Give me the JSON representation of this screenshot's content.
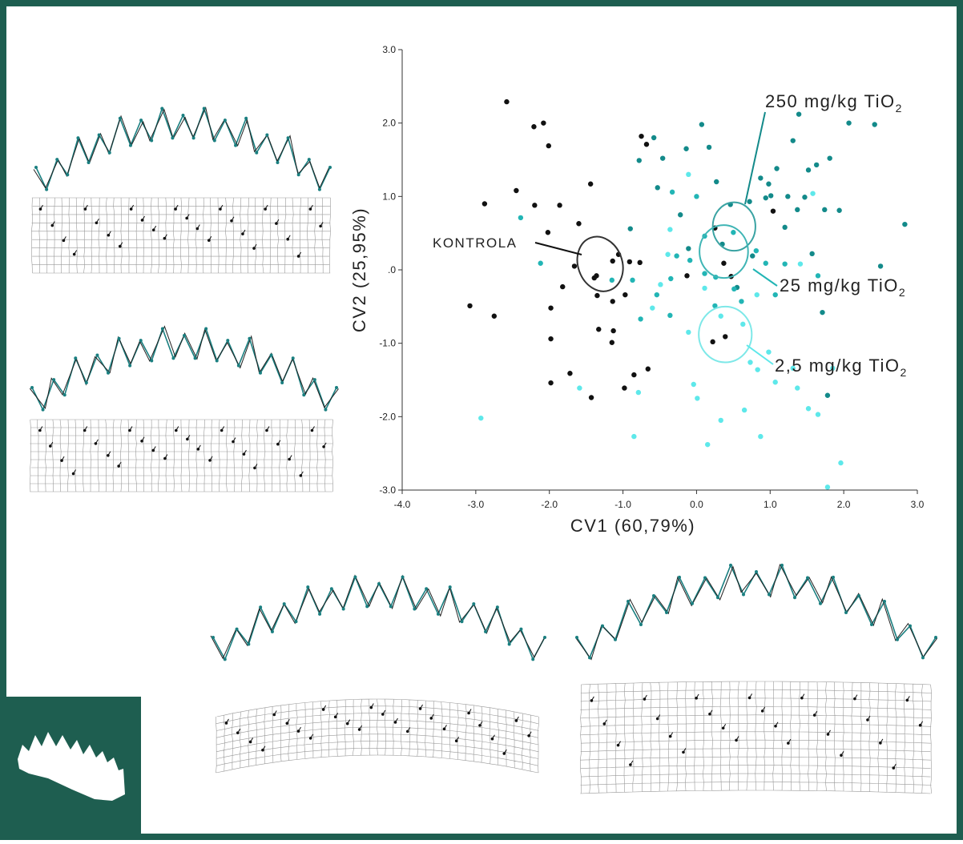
{
  "chart_data": {
    "type": "scatter",
    "x_label": "CV1 (60,79%)",
    "y_label": "CV2 (25,95%)",
    "xlim": [
      -4,
      3
    ],
    "ylim": [
      -3,
      3
    ],
    "xticks": [
      {
        "value": -4,
        "label": "-4.0"
      },
      {
        "value": -3,
        "label": "-3.0"
      },
      {
        "value": -2,
        "label": "-2.0"
      },
      {
        "value": -1,
        "label": "-1.0"
      },
      {
        "value": 0,
        "label": "0.0"
      },
      {
        "value": 1,
        "label": "1.0"
      },
      {
        "value": 2,
        "label": "2.0"
      },
      {
        "value": 3,
        "label": "3.0"
      }
    ],
    "yticks": [
      {
        "value": 3,
        "label": "3.0"
      },
      {
        "value": 2,
        "label": "2.0"
      },
      {
        "value": 1,
        "label": "1.0"
      },
      {
        "value": 0,
        "label": ".0"
      },
      {
        "value": -1,
        "label": "-1.0"
      },
      {
        "value": -2,
        "label": "-2.0"
      },
      {
        "value": -3,
        "label": "-3.0"
      }
    ],
    "series": [
      {
        "color": "#111111",
        "x": [
          -2.58,
          -2.21,
          -2.08,
          -2.01,
          -0.75,
          -0.68,
          -2.88,
          -2.45,
          -2.2,
          -1.86,
          -1.44,
          -1.6,
          -2.02,
          -1.66,
          -1.36,
          -1.39,
          -1.14,
          -1.06,
          -0.91,
          -0.77,
          -1.82,
          -1.35,
          -1.14,
          -0.97,
          -3.08,
          -2.75,
          -1.98,
          -1.33,
          -1.13,
          -1.15,
          -1.98,
          -1.72,
          -1.98,
          -1.43,
          -0.98,
          -0.85,
          -0.66,
          -0.13,
          0.25,
          0.37,
          0.47,
          0.22,
          0.39,
          1.04
        ],
        "values": [
          2.29,
          1.95,
          2.0,
          1.69,
          1.82,
          1.71,
          0.9,
          1.08,
          0.88,
          0.88,
          1.17,
          0.63,
          0.51,
          0.05,
          -0.08,
          -0.11,
          0.12,
          0.21,
          0.11,
          0.1,
          -0.23,
          -0.35,
          -0.43,
          -0.34,
          -0.49,
          -0.63,
          -0.52,
          -0.81,
          -0.83,
          -0.99,
          -0.94,
          -1.41,
          -1.54,
          -1.74,
          -1.61,
          -1.43,
          -1.35,
          -0.08,
          0.57,
          0.09,
          -0.09,
          -0.98,
          -0.91,
          0.8
        ]
      },
      {
        "color": "#138a8a",
        "x": [
          -0.58,
          -0.78,
          -0.46,
          -0.14,
          0.07,
          0.17,
          -0.53,
          -0.22,
          0.27,
          0.46,
          0.72,
          0.87,
          0.98,
          0.94,
          1.01,
          1.09,
          1.24,
          1.37,
          1.2,
          1.52,
          1.63,
          1.81,
          1.74,
          1.94,
          2.07,
          2.42,
          1.39,
          1.31,
          1.47,
          1.57,
          2.5,
          2.83,
          -0.9,
          -0.11,
          0.35,
          0.76,
          0.55,
          1.71,
          1.78
        ],
        "values": [
          1.8,
          1.49,
          1.52,
          1.65,
          1.98,
          1.67,
          1.12,
          0.75,
          1.2,
          0.89,
          0.93,
          1.25,
          1.17,
          0.98,
          1.01,
          1.38,
          1.0,
          0.82,
          0.58,
          1.36,
          1.43,
          1.52,
          0.82,
          0.81,
          2.0,
          1.98,
          2.12,
          1.76,
          0.99,
          0.22,
          0.05,
          0.62,
          0.56,
          0.29,
          0.35,
          0.19,
          -0.24,
          -0.58,
          -1.71
        ]
      },
      {
        "color": "#22b5b5",
        "x": [
          -0.33,
          0.0,
          -0.09,
          0.11,
          0.26,
          0.51,
          0.81,
          0.94,
          0.11,
          0.5,
          -0.87,
          -0.54,
          -0.35,
          -0.27,
          0.25,
          0.61,
          1.07,
          1.2,
          1.65,
          -0.76,
          -0.36,
          -1.15,
          -2.12,
          -2.39
        ],
        "values": [
          1.06,
          1.0,
          0.13,
          -0.05,
          -0.1,
          -0.26,
          0.26,
          0.09,
          0.46,
          0.51,
          -0.14,
          -0.34,
          -0.12,
          0.19,
          -0.49,
          -0.43,
          -0.34,
          0.08,
          -0.08,
          -0.67,
          -0.62,
          -0.14,
          0.09,
          0.71
        ]
      },
      {
        "color": "#5ee8ea",
        "x": [
          -2.93,
          -1.59,
          -0.85,
          -0.79,
          -0.39,
          -0.49,
          -0.6,
          -0.11,
          -0.04,
          0.01,
          0.15,
          0.33,
          0.73,
          0.83,
          1.07,
          0.87,
          0.65,
          0.98,
          1.31,
          1.37,
          1.52,
          1.65,
          1.96,
          1.78,
          1.85,
          1.58,
          1.41,
          0.82,
          -0.11,
          -0.36,
          0.11,
          0.33,
          0.63
        ],
        "values": [
          -2.02,
          -1.61,
          -2.27,
          -1.67,
          0.21,
          -0.2,
          -0.52,
          -0.85,
          -1.56,
          -1.75,
          -2.38,
          -2.05,
          -1.26,
          -1.36,
          -1.53,
          -2.27,
          -1.91,
          -1.12,
          -1.34,
          -1.61,
          -1.89,
          -1.97,
          -2.63,
          -2.96,
          -1.34,
          1.04,
          0.08,
          -0.34,
          1.3,
          0.55,
          -0.25,
          -0.63,
          -0.74
        ]
      }
    ],
    "ellipses": [
      {
        "cx": -1.31,
        "cy": 0.08,
        "rx": 0.3,
        "ry": 0.38,
        "color": "#333333"
      },
      {
        "cx": 0.51,
        "cy": 0.59,
        "rx": 0.29,
        "ry": 0.33,
        "color": "#3aa3a3"
      },
      {
        "cx": 0.37,
        "cy": 0.25,
        "rx": 0.33,
        "ry": 0.36,
        "color": "#3fb5b5"
      },
      {
        "cx": 0.39,
        "cy": -0.88,
        "rx": 0.36,
        "ry": 0.38,
        "color": "#7ee8e8"
      }
    ],
    "annotations": [
      {
        "text": "KONTROLA",
        "color": "#111111"
      },
      {
        "text": "250 mg/kg TiO",
        "sub": "2",
        "color": "#138a8a"
      },
      {
        "text": "25 mg/kg TiO",
        "sub": "2",
        "color": "#22b5b5"
      },
      {
        "text": "2,5 mg/kg TiO",
        "sub": "2",
        "color": "#5ee8ea"
      }
    ]
  }
}
